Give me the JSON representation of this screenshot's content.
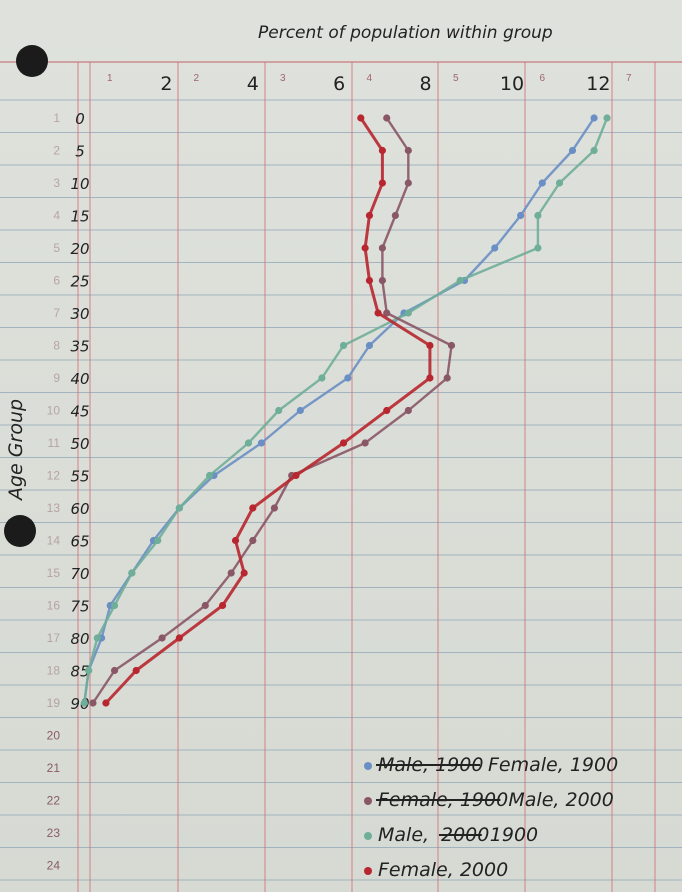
{
  "chart_data": {
    "type": "line",
    "title": "Percent of population within group",
    "xlabel": "",
    "ylabel": "Age Group",
    "x_ticks": [
      "2",
      "4",
      "6",
      "8",
      "10",
      "12"
    ],
    "y_ticks": [
      "0",
      "5",
      "10",
      "15",
      "20",
      "25",
      "30",
      "35",
      "40",
      "45",
      "50",
      "55",
      "60",
      "65",
      "70",
      "75",
      "80",
      "85",
      "90"
    ],
    "printed_row_numbers": [
      "1",
      "2",
      "3",
      "4",
      "5",
      "6",
      "7",
      "8",
      "9",
      "10",
      "11",
      "12",
      "13",
      "14",
      "15",
      "16",
      "17",
      "18",
      "19",
      "20",
      "21",
      "22",
      "23",
      "24"
    ],
    "printed_column_numbers": [
      "1",
      "2",
      "3",
      "4",
      "5",
      "6",
      "7"
    ],
    "xlim": [
      0,
      12.5
    ],
    "ylim": [
      0,
      90
    ],
    "grid": true,
    "legend_position": "bottom-right",
    "categories": [
      0,
      5,
      10,
      15,
      20,
      25,
      30,
      35,
      40,
      45,
      50,
      55,
      60,
      65,
      70,
      75,
      80,
      85,
      90
    ],
    "series": [
      {
        "name": "Female, 1900",
        "color": "#6a8fc4",
        "values": [
          11.9,
          11.4,
          10.7,
          10.2,
          9.6,
          8.9,
          7.5,
          6.7,
          6.2,
          5.1,
          4.2,
          3.1,
          2.3,
          1.7,
          1.2,
          0.7,
          0.5,
          0.2,
          0.1
        ]
      },
      {
        "name": "Male, 1900",
        "color": "#6fae98",
        "values": [
          12.2,
          11.9,
          11.1,
          10.6,
          10.6,
          8.8,
          7.6,
          6.1,
          5.6,
          4.6,
          3.9,
          3.0,
          2.3,
          1.8,
          1.2,
          0.8,
          0.4,
          0.2,
          0.1
        ]
      },
      {
        "name": "Male, 2000",
        "color": "#8a5766",
        "values": [
          7.1,
          7.6,
          7.6,
          7.3,
          7.0,
          7.0,
          7.1,
          8.6,
          8.5,
          7.6,
          6.6,
          4.9,
          4.5,
          4.0,
          3.5,
          2.9,
          1.9,
          0.8,
          0.3
        ]
      },
      {
        "name": "Female, 2000",
        "color": "#b8262f",
        "values": [
          6.5,
          7.0,
          7.0,
          6.7,
          6.6,
          6.7,
          6.9,
          8.1,
          8.1,
          7.1,
          6.1,
          5.0,
          4.0,
          3.6,
          3.8,
          3.3,
          2.3,
          1.3,
          0.6
        ]
      }
    ],
    "legend": [
      {
        "crossed": "Male, 1900",
        "text": "Female, 1900",
        "color": "#6a8fc4"
      },
      {
        "crossed": "Female, 1900",
        "text": "Male, 2000",
        "color": "#8a5766"
      },
      {
        "crossed_prefix": "Male, ",
        "crossed": "2000",
        "text": "1900",
        "color": "#6fae98"
      },
      {
        "crossed": "",
        "text": "Female, 2000",
        "color": "#b8262f"
      }
    ]
  }
}
